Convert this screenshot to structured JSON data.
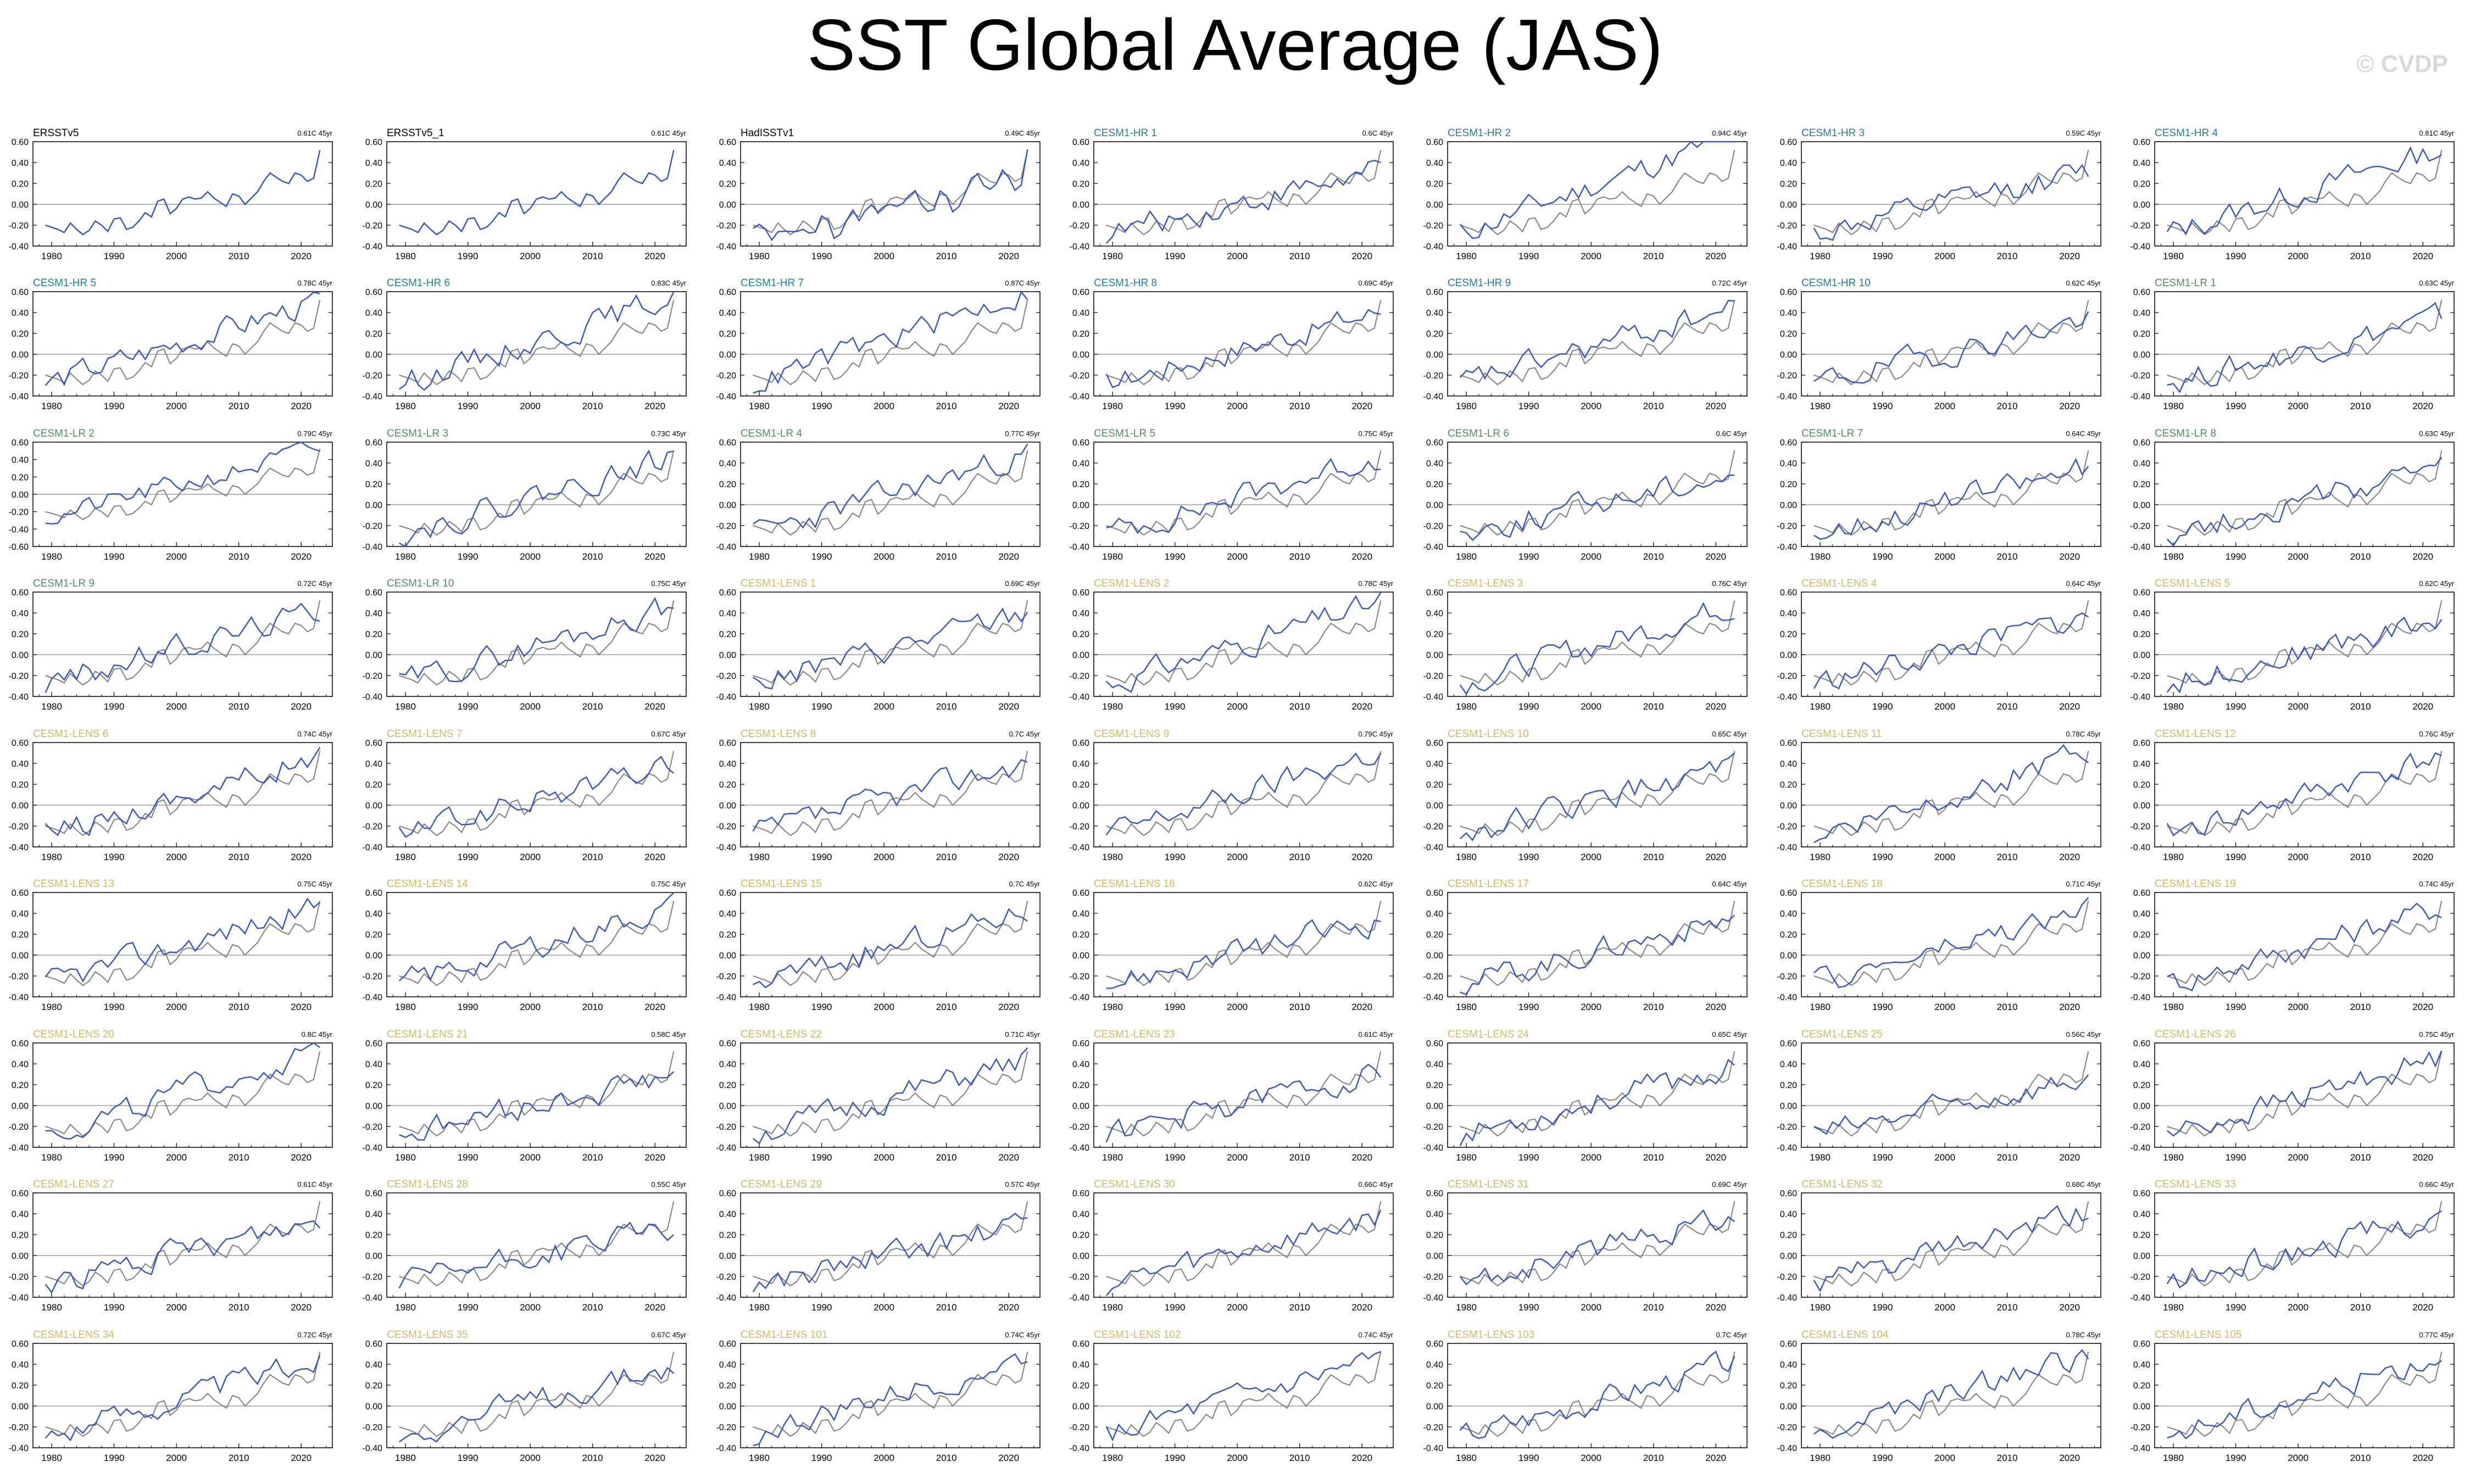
{
  "title": "SST Global Average (JAS)",
  "watermark": "© CVDP",
  "colors": {
    "model_line": "#3355cc",
    "obs_line": "#808080",
    "obs_label": "#000000",
    "hr_label": "#1f7f9f",
    "lr_label": "#4f8f5f",
    "lens_label": "#d4b860"
  },
  "chart_data": {
    "type": "line",
    "grid": false,
    "xlabel": "",
    "ylabel": "",
    "xlim": [
      1977,
      2025
    ],
    "x_ticks": [
      "1980",
      "1990",
      "2000",
      "2010",
      "2020"
    ],
    "x": [
      1979,
      1980,
      1981,
      1982,
      1983,
      1984,
      1985,
      1986,
      1987,
      1988,
      1989,
      1990,
      1991,
      1992,
      1993,
      1994,
      1995,
      1996,
      1997,
      1998,
      1999,
      2000,
      2001,
      2002,
      2003,
      2004,
      2005,
      2006,
      2007,
      2008,
      2009,
      2010,
      2011,
      2012,
      2013,
      2014,
      2015,
      2016,
      2017,
      2018,
      2019,
      2020,
      2021,
      2022,
      2023
    ],
    "reference_series": {
      "name": "ERSSTv5",
      "values": [
        -0.2,
        -0.22,
        -0.24,
        -0.27,
        -0.18,
        -0.24,
        -0.29,
        -0.25,
        -0.16,
        -0.2,
        -0.26,
        -0.14,
        -0.13,
        -0.24,
        -0.22,
        -0.16,
        -0.08,
        -0.12,
        0.03,
        0.05,
        -0.09,
        -0.04,
        0.05,
        0.07,
        0.05,
        0.06,
        0.12,
        0.06,
        0.02,
        -0.02,
        0.1,
        0.08,
        0.0,
        0.06,
        0.12,
        0.22,
        0.3,
        0.26,
        0.22,
        0.2,
        0.3,
        0.28,
        0.22,
        0.25,
        0.52
      ]
    },
    "panels": [
      {
        "label": "ERSSTv5",
        "trend": "0.61C 45yr",
        "group": "obs",
        "ylim": [
          -0.4,
          0.6
        ]
      },
      {
        "label": "ERSSTv5_1",
        "trend": "0.61C 45yr",
        "group": "obs",
        "ylim": [
          -0.4,
          0.6
        ]
      },
      {
        "label": "HadISSTv1",
        "trend": "0.49C 45yr",
        "group": "obs",
        "ylim": [
          -0.4,
          0.6
        ]
      },
      {
        "label": "CESM1-HR 1",
        "trend": "0.6C 45yr",
        "group": "hr",
        "ylim": [
          -0.4,
          0.6
        ]
      },
      {
        "label": "CESM1-HR 2",
        "trend": "0.94C 45yr",
        "group": "hr",
        "ylim": [
          -0.4,
          0.6
        ]
      },
      {
        "label": "CESM1-HR 3",
        "trend": "0.59C 45yr",
        "group": "hr",
        "ylim": [
          -0.4,
          0.6
        ]
      },
      {
        "label": "CESM1-HR 4",
        "trend": "0.81C 45yr",
        "group": "hr",
        "ylim": [
          -0.4,
          0.6
        ]
      },
      {
        "label": "CESM1-HR 5",
        "trend": "0.78C 45yr",
        "group": "hr",
        "ylim": [
          -0.4,
          0.6
        ]
      },
      {
        "label": "CESM1-HR 6",
        "trend": "0.83C 45yr",
        "group": "hr",
        "ylim": [
          -0.4,
          0.6
        ]
      },
      {
        "label": "CESM1-HR 7",
        "trend": "0.87C 45yr",
        "group": "hr",
        "ylim": [
          -0.4,
          0.6
        ]
      },
      {
        "label": "CESM1-HR 8",
        "trend": "0.69C 45yr",
        "group": "hr",
        "ylim": [
          -0.4,
          0.6
        ]
      },
      {
        "label": "CESM1-HR 9",
        "trend": "0.72C 45yr",
        "group": "hr",
        "ylim": [
          -0.4,
          0.6
        ]
      },
      {
        "label": "CESM1-HR 10",
        "trend": "0.62C 45yr",
        "group": "hr",
        "ylim": [
          -0.4,
          0.6
        ]
      },
      {
        "label": "CESM1-LR 1",
        "trend": "0.63C 45yr",
        "group": "lr",
        "ylim": [
          -0.4,
          0.6
        ]
      },
      {
        "label": "CESM1-LR 2",
        "trend": "0.79C 45yr",
        "group": "lr",
        "ylim": [
          -0.6,
          0.6
        ]
      },
      {
        "label": "CESM1-LR 3",
        "trend": "0.73C 45yr",
        "group": "lr",
        "ylim": [
          -0.4,
          0.6
        ]
      },
      {
        "label": "CESM1-LR 4",
        "trend": "0.77C 45yr",
        "group": "lr",
        "ylim": [
          -0.4,
          0.6
        ]
      },
      {
        "label": "CESM1-LR 5",
        "trend": "0.75C 45yr",
        "group": "lr",
        "ylim": [
          -0.4,
          0.6
        ]
      },
      {
        "label": "CESM1-LR 6",
        "trend": "0.6C 45yr",
        "group": "lr",
        "ylim": [
          -0.4,
          0.6
        ]
      },
      {
        "label": "CESM1-LR 7",
        "trend": "0.64C 45yr",
        "group": "lr",
        "ylim": [
          -0.4,
          0.6
        ]
      },
      {
        "label": "CESM1-LR 8",
        "trend": "0.63C 45yr",
        "group": "lr",
        "ylim": [
          -0.4,
          0.6
        ]
      },
      {
        "label": "CESM1-LR 9",
        "trend": "0.72C 45yr",
        "group": "lr",
        "ylim": [
          -0.4,
          0.6
        ]
      },
      {
        "label": "CESM1-LR 10",
        "trend": "0.75C 45yr",
        "group": "lr",
        "ylim": [
          -0.4,
          0.6
        ]
      },
      {
        "label": "CESM1-LENS 1",
        "trend": "0.69C 45yr",
        "group": "lens",
        "ylim": [
          -0.4,
          0.6
        ]
      },
      {
        "label": "CESM1-LENS 2",
        "trend": "0.78C 45yr",
        "group": "lens",
        "ylim": [
          -0.4,
          0.6
        ]
      },
      {
        "label": "CESM1-LENS 3",
        "trend": "0.76C 45yr",
        "group": "lens",
        "ylim": [
          -0.4,
          0.6
        ]
      },
      {
        "label": "CESM1-LENS 4",
        "trend": "0.64C 45yr",
        "group": "lens",
        "ylim": [
          -0.4,
          0.6
        ]
      },
      {
        "label": "CESM1-LENS 5",
        "trend": "0.62C 45yr",
        "group": "lens",
        "ylim": [
          -0.4,
          0.6
        ]
      },
      {
        "label": "CESM1-LENS 6",
        "trend": "0.74C 45yr",
        "group": "lens",
        "ylim": [
          -0.4,
          0.6
        ]
      },
      {
        "label": "CESM1-LENS 7",
        "trend": "0.67C 45yr",
        "group": "lens",
        "ylim": [
          -0.4,
          0.6
        ]
      },
      {
        "label": "CESM1-LENS 8",
        "trend": "0.7C 45yr",
        "group": "lens",
        "ylim": [
          -0.4,
          0.6
        ]
      },
      {
        "label": "CESM1-LENS 9",
        "trend": "0.79C 45yr",
        "group": "lens",
        "ylim": [
          -0.4,
          0.6
        ]
      },
      {
        "label": "CESM1-LENS 10",
        "trend": "0.65C 45yr",
        "group": "lens",
        "ylim": [
          -0.4,
          0.6
        ]
      },
      {
        "label": "CESM1-LENS 11",
        "trend": "0.78C 45yr",
        "group": "lens",
        "ylim": [
          -0.4,
          0.6
        ]
      },
      {
        "label": "CESM1-LENS 12",
        "trend": "0.76C 45yr",
        "group": "lens",
        "ylim": [
          -0.4,
          0.6
        ]
      },
      {
        "label": "CESM1-LENS 13",
        "trend": "0.75C 45yr",
        "group": "lens",
        "ylim": [
          -0.4,
          0.6
        ]
      },
      {
        "label": "CESM1-LENS 14",
        "trend": "0.75C 45yr",
        "group": "lens",
        "ylim": [
          -0.4,
          0.6
        ]
      },
      {
        "label": "CESM1-LENS 15",
        "trend": "0.7C 45yr",
        "group": "lens",
        "ylim": [
          -0.4,
          0.6
        ]
      },
      {
        "label": "CESM1-LENS 16",
        "trend": "0.62C 45yr",
        "group": "lens",
        "ylim": [
          -0.4,
          0.6
        ]
      },
      {
        "label": "CESM1-LENS 17",
        "trend": "0.64C 45yr",
        "group": "lens",
        "ylim": [
          -0.4,
          0.6
        ]
      },
      {
        "label": "CESM1-LENS 18",
        "trend": "0.71C 45yr",
        "group": "lens",
        "ylim": [
          -0.4,
          0.6
        ]
      },
      {
        "label": "CESM1-LENS 19",
        "trend": "0.74C 45yr",
        "group": "lens",
        "ylim": [
          -0.4,
          0.6
        ]
      },
      {
        "label": "CESM1-LENS 20",
        "trend": "0.8C 45yr",
        "group": "lens",
        "ylim": [
          -0.4,
          0.6
        ]
      },
      {
        "label": "CESM1-LENS 21",
        "trend": "0.58C 45yr",
        "group": "lens",
        "ylim": [
          -0.4,
          0.6
        ]
      },
      {
        "label": "CESM1-LENS 22",
        "trend": "0.71C 45yr",
        "group": "lens",
        "ylim": [
          -0.4,
          0.6
        ]
      },
      {
        "label": "CESM1-LENS 23",
        "trend": "0.61C 45yr",
        "group": "lens",
        "ylim": [
          -0.4,
          0.6
        ]
      },
      {
        "label": "CESM1-LENS 24",
        "trend": "0.65C 45yr",
        "group": "lens",
        "ylim": [
          -0.4,
          0.6
        ]
      },
      {
        "label": "CESM1-LENS 25",
        "trend": "0.56C 45yr",
        "group": "lens",
        "ylim": [
          -0.4,
          0.6
        ]
      },
      {
        "label": "CESM1-LENS 26",
        "trend": "0.75C 45yr",
        "group": "lens",
        "ylim": [
          -0.4,
          0.6
        ]
      },
      {
        "label": "CESM1-LENS 27",
        "trend": "0.61C 45yr",
        "group": "lens",
        "ylim": [
          -0.4,
          0.6
        ]
      },
      {
        "label": "CESM1-LENS 28",
        "trend": "0.55C 45yr",
        "group": "lens",
        "ylim": [
          -0.4,
          0.6
        ]
      },
      {
        "label": "CESM1-LENS 29",
        "trend": "0.57C 45yr",
        "group": "lens",
        "ylim": [
          -0.4,
          0.6
        ]
      },
      {
        "label": "CESM1-LENS 30",
        "trend": "0.66C 45yr",
        "group": "lens",
        "ylim": [
          -0.4,
          0.6
        ]
      },
      {
        "label": "CESM1-LENS 31",
        "trend": "0.69C 45yr",
        "group": "lens",
        "ylim": [
          -0.4,
          0.6
        ]
      },
      {
        "label": "CESM1-LENS 32",
        "trend": "0.68C 45yr",
        "group": "lens",
        "ylim": [
          -0.4,
          0.6
        ]
      },
      {
        "label": "CESM1-LENS 33",
        "trend": "0.66C 45yr",
        "group": "lens",
        "ylim": [
          -0.4,
          0.6
        ]
      },
      {
        "label": "CESM1-LENS 34",
        "trend": "0.72C 45yr",
        "group": "lens",
        "ylim": [
          -0.4,
          0.6
        ]
      },
      {
        "label": "CESM1-LENS 35",
        "trend": "0.67C 45yr",
        "group": "lens",
        "ylim": [
          -0.4,
          0.6
        ]
      },
      {
        "label": "CESM1-LENS 101",
        "trend": "0.74C 45yr",
        "group": "lens",
        "ylim": [
          -0.4,
          0.6
        ]
      },
      {
        "label": "CESM1-LENS 102",
        "trend": "0.74C 45yr",
        "group": "lens",
        "ylim": [
          -0.4,
          0.6
        ]
      },
      {
        "label": "CESM1-LENS 103",
        "trend": "0.7C 45yr",
        "group": "lens",
        "ylim": [
          -0.4,
          0.6
        ]
      },
      {
        "label": "CESM1-LENS 104",
        "trend": "0.78C 45yr",
        "group": "lens",
        "ylim": [
          -0.4,
          0.6
        ]
      },
      {
        "label": "CESM1-LENS 105",
        "trend": "0.77C 45yr",
        "group": "lens",
        "ylim": [
          -0.4,
          0.6
        ]
      }
    ]
  }
}
